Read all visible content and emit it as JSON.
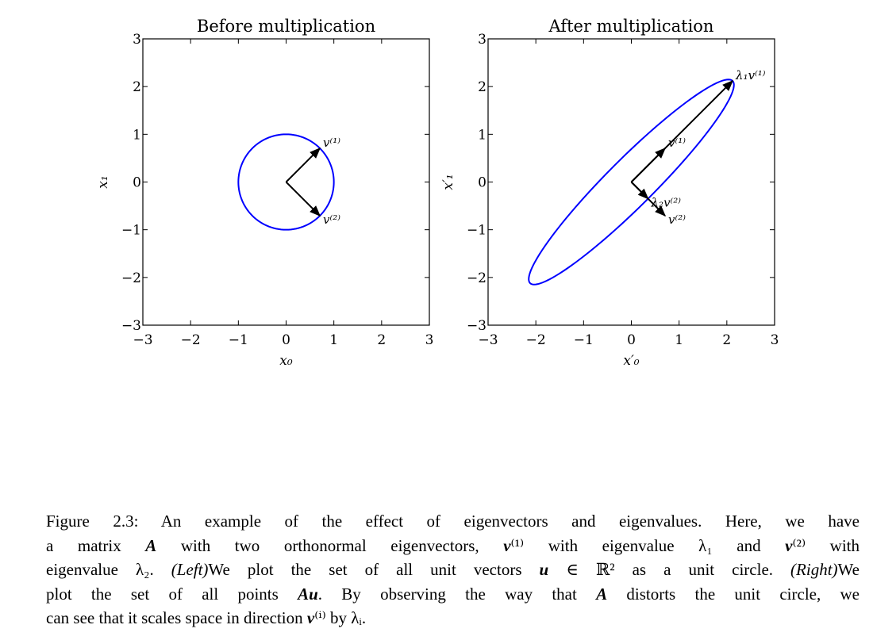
{
  "chart_data": [
    {
      "type": "vector",
      "title": "Before multiplication",
      "xlabel": "x₀",
      "ylabel": "x₁",
      "xlim": [
        -3,
        3
      ],
      "ylim": [
        -3,
        3
      ],
      "xticks": [
        {
          "value": -3,
          "label": "−3"
        },
        {
          "value": -2,
          "label": "−2"
        },
        {
          "value": -1,
          "label": "−1"
        },
        0,
        1,
        2,
        3
      ],
      "yticks": [
        {
          "value": -3,
          "label": "−3"
        },
        {
          "value": -2,
          "label": "−2"
        },
        {
          "value": -1,
          "label": "−1"
        },
        0,
        1,
        2,
        3
      ],
      "curve_color": "#0000ff",
      "vectors": [
        {
          "name": "v⁽¹⁾",
          "x": 0.707,
          "y": 0.707
        },
        {
          "name": "v⁽²⁾",
          "x": 0.707,
          "y": -0.707
        }
      ]
    },
    {
      "type": "vector",
      "title": "After multiplication",
      "xlabel": "x′₀",
      "ylabel": "x′₁",
      "xlim": [
        -3,
        3
      ],
      "ylim": [
        -3,
        3
      ],
      "xticks": [
        {
          "value": -3,
          "label": "−3"
        },
        {
          "value": -2,
          "label": "−2"
        },
        {
          "value": -1,
          "label": "−1"
        },
        0,
        1,
        2,
        3
      ],
      "yticks": [
        {
          "value": -3,
          "label": "−3"
        },
        {
          "value": -2,
          "label": "−2"
        },
        {
          "value": -1,
          "label": "−1"
        },
        0,
        1,
        2,
        3
      ],
      "curve_color": "#0000ff",
      "vectors": [
        {
          "name": "λ₁v⁽¹⁾",
          "x": 2.12,
          "y": 2.12
        },
        {
          "name": "λ₂v⁽²⁾",
          "x": 0.35,
          "y": -0.35
        },
        {
          "name": "v⁽¹⁾",
          "x": 0.707,
          "y": 0.707
        },
        {
          "name": "v⁽²⁾",
          "x": 0.707,
          "y": -0.707
        }
      ]
    }
  ],
  "caption": {
    "lines": [
      [
        {
          "text": "Figure 2.3: An example of the effect of eigenvectors and eigenvalues. Here, we have"
        }
      ],
      [
        {
          "text": "a matrix "
        },
        {
          "text": "A",
          "style": "bold-italic"
        },
        {
          "text": " with two orthonormal eigenvectors, "
        },
        {
          "text": "v",
          "style": "bold-italic"
        },
        {
          "text": "⁽¹⁾ with eigenvalue λ₁ and "
        },
        {
          "text": "v",
          "style": "bold-italic"
        },
        {
          "text": "⁽²⁾ with"
        }
      ],
      [
        {
          "text": "eigenvalue λ₂. "
        },
        {
          "text": "(Left)",
          "style": "italic"
        },
        {
          "text": "We plot the set of all unit vectors "
        },
        {
          "text": "u",
          "style": "bold-italic"
        },
        {
          "text": " ∈ ℝ² as a unit circle. "
        },
        {
          "text": "(Right)",
          "style": "italic"
        },
        {
          "text": "We"
        }
      ],
      [
        {
          "text": "plot the set of all points "
        },
        {
          "text": "Au",
          "style": "bold-italic"
        },
        {
          "text": ". By observing the way that "
        },
        {
          "text": "A",
          "style": "bold-italic"
        },
        {
          "text": " distorts the unit circle, we"
        }
      ],
      [
        {
          "text": "can see that it scales space in direction "
        },
        {
          "text": "v",
          "style": "bold-italic"
        },
        {
          "text": "⁽ⁱ⁾ by λᵢ."
        }
      ]
    ]
  }
}
